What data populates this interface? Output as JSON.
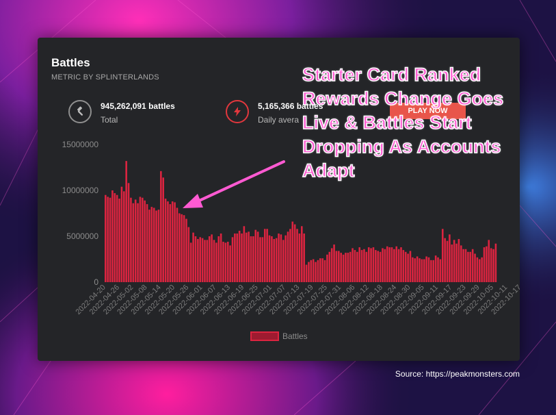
{
  "card": {
    "title": "Battles",
    "subtitle": "METRIC BY SPLINTERLANDS"
  },
  "stats": [
    {
      "icon": "gavel-icon",
      "value": "945,262,091 battles",
      "label": "Total"
    },
    {
      "icon": "lightning-icon",
      "value": "5,165,366 battles",
      "label": "Daily avera"
    }
  ],
  "ad": {
    "label": "PLAY NOW"
  },
  "annotation": {
    "text": "Starter Card Ranked Rewards Change Goes Live & Battles Start Dropping As Accounts Adapt",
    "color": "#ff5ad2"
  },
  "source": "Source: https://peakmonsters.com",
  "chart_data": {
    "type": "bar",
    "start_date": "2022-04-20",
    "end_date": "2022-10-19",
    "x_tick_labels": [
      "2022-04-20",
      "2022-04-26",
      "2022-05-02",
      "2022-05-08",
      "2022-05-14",
      "2022-05-20",
      "2022-05-26",
      "2022-06-01",
      "2022-06-07",
      "2022-06-13",
      "2022-06-19",
      "2022-06-25",
      "2022-07-01",
      "2022-07-07",
      "2022-07-13",
      "2022-07-19",
      "2022-07-25",
      "2022-07-31",
      "2022-08-06",
      "2022-08-12",
      "2022-08-18",
      "2022-08-24",
      "2022-08-30",
      "2022-09-05",
      "2022-09-11",
      "2022-09-17",
      "2022-09-23",
      "2022-09-29",
      "2022-10-05",
      "2022-10-11",
      "2022-10-17"
    ],
    "y_tick_labels": [
      "0",
      "5000000",
      "10000000",
      "15000000"
    ],
    "ylim": [
      0,
      15000000
    ],
    "legend": "Battles",
    "legend_position": "bottom",
    "bar_color": "#dc2440",
    "series": [
      {
        "name": "Battles",
        "values": [
          9500000,
          9300000,
          9200000,
          10000000,
          9700000,
          9500000,
          9100000,
          10400000,
          9900000,
          13200000,
          10800000,
          9200000,
          8600000,
          9000000,
          8600000,
          9300000,
          9200000,
          8900000,
          8500000,
          7900000,
          8200000,
          8100000,
          7800000,
          7900000,
          12100000,
          11400000,
          9100000,
          8800000,
          8500000,
          8800000,
          8700000,
          8100000,
          7500000,
          7400000,
          7300000,
          6900000,
          6000000,
          4300000,
          5400000,
          5000000,
          4700000,
          4900000,
          4800000,
          4600000,
          4600000,
          5000000,
          5200000,
          4600000,
          4300000,
          5000000,
          5300000,
          4400000,
          4300000,
          4400000,
          4000000,
          4900000,
          5300000,
          5300000,
          5600000,
          5300000,
          6100000,
          5400000,
          5500000,
          5000000,
          5000000,
          5700000,
          5500000,
          4900000,
          4900000,
          5800000,
          5800000,
          5100000,
          5000000,
          4700000,
          4800000,
          5300000,
          5200000,
          4600000,
          5100000,
          5500000,
          5800000,
          6600000,
          6300000,
          5800000,
          5300000,
          6100000,
          5300000,
          1900000,
          2200000,
          2400000,
          2500000,
          2200000,
          2400000,
          2600000,
          2600000,
          2400000,
          3000000,
          3300000,
          3700000,
          4100000,
          3400000,
          3400000,
          3200000,
          3000000,
          3200000,
          3200000,
          3300000,
          3700000,
          3500000,
          3300000,
          3800000,
          3500000,
          3600000,
          3300000,
          3800000,
          3700000,
          3800000,
          3500000,
          3400000,
          3300000,
          3700000,
          3600000,
          3900000,
          3800000,
          3800000,
          3600000,
          3900000,
          3600000,
          3800000,
          3500000,
          3300000,
          3100000,
          3400000,
          2700000,
          2600000,
          2800000,
          2600000,
          2500000,
          2500000,
          2800000,
          2700000,
          2400000,
          2400000,
          2900000,
          2700000,
          2500000,
          5800000,
          4800000,
          4500000,
          5200000,
          4100000,
          4600000,
          4200000,
          4700000,
          4000000,
          3600000,
          3600000,
          3300000,
          3300000,
          3600000,
          3100000,
          2700000,
          2500000,
          2700000,
          3800000,
          3900000,
          4600000,
          3700000,
          3600000,
          4200000
        ]
      }
    ]
  }
}
